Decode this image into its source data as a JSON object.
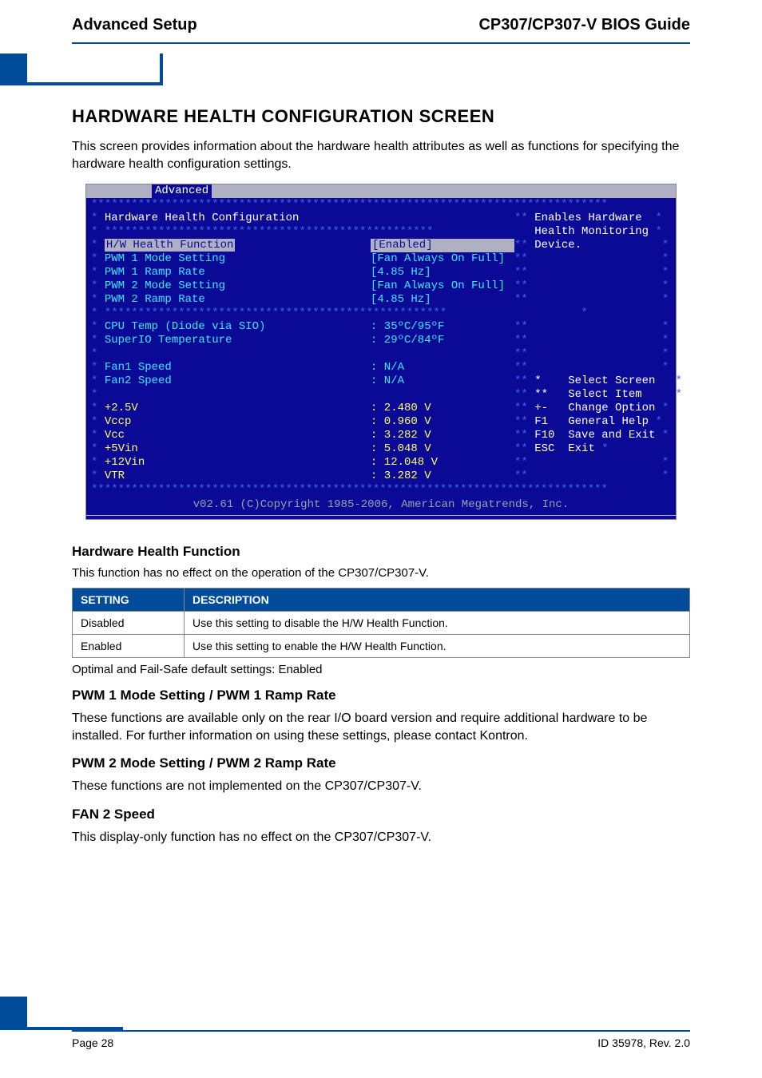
{
  "header": {
    "left": "Advanced Setup",
    "right": "CP307/CP307-V BIOS Guide"
  },
  "title": "HARDWARE HEALTH CONFIGURATION SCREEN",
  "intro": "This screen provides information about the hardware health attributes as well as functions for specifying the hardware health configuration settings.",
  "bios": {
    "tab": "Advanced",
    "section_title": "Hardware Health Configuration",
    "help": {
      "l1": "Enables Hardware",
      "l2": "Health Monitoring",
      "l3": "Device."
    },
    "selected_item": {
      "label": "H/W Health Function",
      "value": "[Enabled]"
    },
    "items_top": [
      {
        "label": "PWM 1 Mode Setting",
        "value": "[Fan Always On Full]"
      },
      {
        "label": "PWM 1 Ramp Rate",
        "value": "[4.85 Hz]"
      },
      {
        "label": "PWM 2 Mode Setting",
        "value": "[Fan Always On Full]"
      },
      {
        "label": "PWM 2 Ramp Rate",
        "value": "[4.85 Hz]"
      }
    ],
    "temps": [
      {
        "label": "CPU Temp (Diode via SIO)",
        "value": ": 35ºC/95ºF"
      },
      {
        "label": "SuperIO Temperature",
        "value": ": 29ºC/84ºF"
      }
    ],
    "fans": [
      {
        "label": "Fan1 Speed",
        "value": ": N/A"
      },
      {
        "label": "Fan2 Speed",
        "value": ": N/A"
      }
    ],
    "volts": [
      {
        "label": "+2.5V",
        "value": ": 2.480 V"
      },
      {
        "label": "Vccp",
        "value": ": 0.960 V"
      },
      {
        "label": "Vcc",
        "value": ": 3.282 V"
      },
      {
        "label": "+5Vin",
        "value": ": 5.048 V"
      },
      {
        "label": "+12Vin",
        "value": ": 12.048 V"
      },
      {
        "label": "VTR",
        "value": ": 3.282 V"
      }
    ],
    "nav": [
      {
        "key": "*",
        "label": "Select Screen"
      },
      {
        "key": "**",
        "label": "Select Item"
      },
      {
        "key": "+-",
        "label": "Change Option"
      },
      {
        "key": "F1",
        "label": "General Help"
      },
      {
        "key": "F10",
        "label": "Save and Exit"
      },
      {
        "key": "ESC",
        "label": "Exit"
      }
    ],
    "footer": "v02.61 (C)Copyright 1985-2006, American Megatrends, Inc."
  },
  "hhf": {
    "heading": "Hardware Health Function",
    "para": "This function has no effect on the operation of the CP307/CP307-V.",
    "cols": {
      "c1": "Setting",
      "c2": "Description"
    },
    "rows": [
      {
        "s": "Disabled",
        "d": "Use this setting to disable the H/W Health Function."
      },
      {
        "s": "Enabled",
        "d": "Use this setting to enable the H/W Health Function."
      }
    ],
    "below": "Optimal and Fail-Safe default settings: Enabled"
  },
  "pwm1": {
    "heading": "PWM 1 Mode Setting / PWM 1 Ramp Rate",
    "para": "These functions are available only on the rear I/O board version and require additional hardware to be installed. For further information on using these settings, please contact Kontron."
  },
  "pwm2": {
    "heading": "PWM 2 Mode Setting / PWM 2 Ramp Rate",
    "para": "These functions are not implemented on the CP307/CP307-V."
  },
  "fan2": {
    "heading": "FAN 2 Speed",
    "para": "This display-only function has no effect on the CP307/CP307-V."
  },
  "footer": {
    "left": "Page 28",
    "right": "ID 35978, Rev. 2.0"
  },
  "colors": {
    "brand_blue": "#004b9a",
    "bios_bg": "#0a0a96",
    "bios_star": "#3866f0",
    "bios_cyan": "#3de7ff",
    "bios_yellow": "#fdfd6a",
    "bios_grey": "#9aa0b0",
    "bios_white": "#ffffff",
    "bios_topbar": "#b0b0c4"
  }
}
